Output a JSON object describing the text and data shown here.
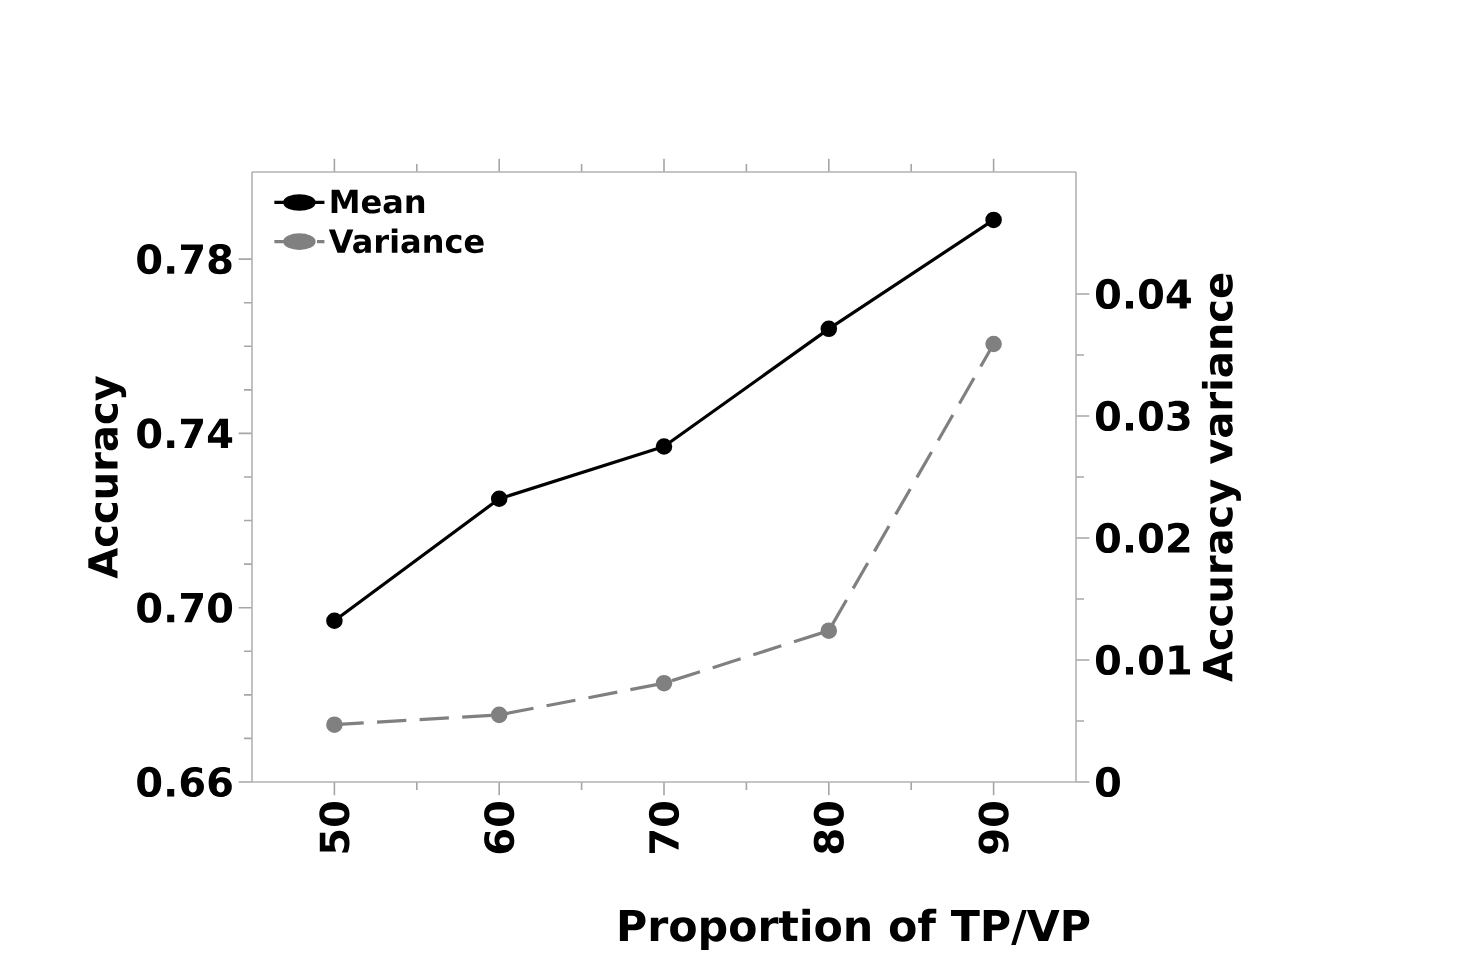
{
  "chart_data": {
    "type": "line",
    "xlabel": "Proportion of TP/VP",
    "ylabel": "Accuracy",
    "y2label": "Accuracy variance",
    "x": [
      50,
      60,
      70,
      80,
      90
    ],
    "xlim": [
      45,
      95
    ],
    "xticks": [
      50,
      60,
      70,
      80,
      90
    ],
    "ylim": [
      0.66,
      0.8
    ],
    "yticks": [
      0.66,
      {
        "value": 0.7,
        "label": "0.70"
      },
      0.74,
      0.78
    ],
    "y2lim": [
      0,
      0.05
    ],
    "y2ticks": [
      0,
      0.01,
      0.02,
      0.03,
      0.04
    ],
    "series": [
      {
        "name": "Mean",
        "color": "#000000",
        "values": [
          0.697,
          0.725,
          0.737,
          0.764,
          0.789
        ],
        "line_style": "solid"
      },
      {
        "name": "Variance",
        "color": "#808080",
        "values": [
          0.0047,
          0.0055,
          0.0081,
          0.0124,
          0.0359
        ],
        "axis": "y2",
        "line_style": "dashed"
      }
    ],
    "marker": "circle",
    "legend": "top left",
    "grid": false
  }
}
